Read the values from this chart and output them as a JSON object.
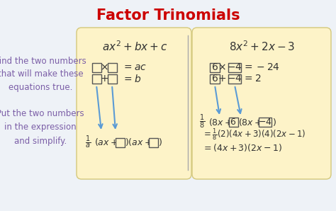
{
  "title": "Factor Trinomials",
  "title_color": "#cc0000",
  "title_fontsize": 15,
  "bg_color": "#eef2f7",
  "panel_bg": "#fdf3c8",
  "panel_edge": "#d4c87a",
  "outer_border_color": "#7bafd4",
  "left_text_color": "#7b5ea7",
  "left_text1": "Find the two numbers\nthat will make these\nequations true.",
  "left_text2": "Put the two numbers\nin the expression\nand simplify.",
  "arrow_color": "#5b9bd5",
  "text_color": "#333333"
}
